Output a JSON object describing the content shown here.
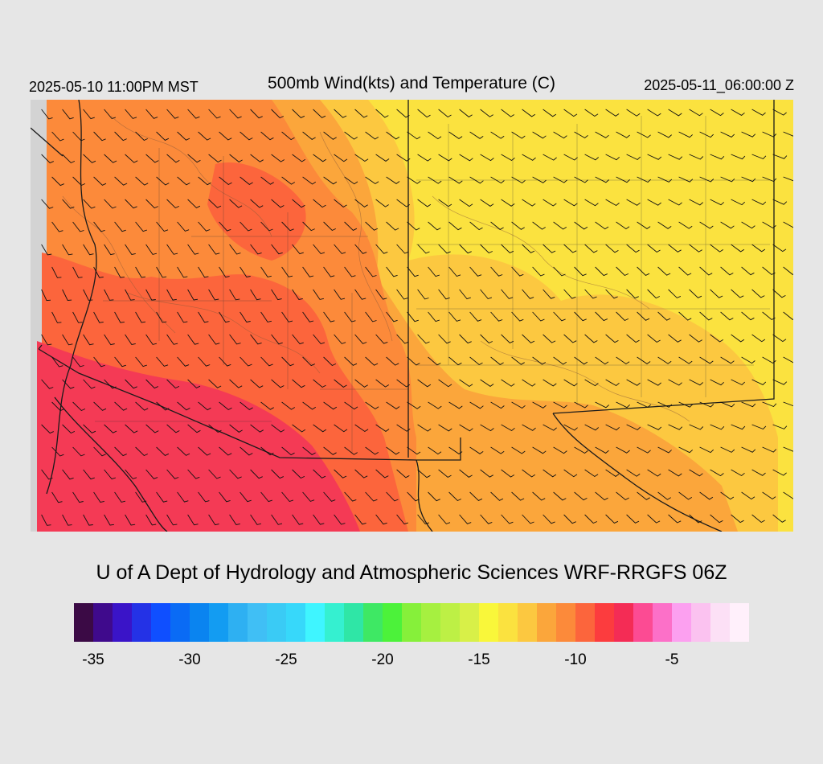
{
  "header": {
    "local_time": "2025-05-10 11:00PM MST",
    "title": "500mb Wind(kts) and Temperature (C)",
    "utc_time": "2025-05-11_06:00:00 Z"
  },
  "credit": "U of A Dept of Hydrology and Atmospheric Sciences WRF-RRGFS 06Z",
  "colorbar": {
    "colors": [
      "#3b0a45",
      "#3f0a8c",
      "#3a14c8",
      "#2432e6",
      "#0f4fff",
      "#0a6bf5",
      "#0a84f0",
      "#139cf2",
      "#2eb0f2",
      "#40bff5",
      "#3acbf5",
      "#37d8fa",
      "#3ff5ff",
      "#35f0d0",
      "#2fe6a6",
      "#3ee864",
      "#4cf23a",
      "#86f03a",
      "#a6f040",
      "#bdf045",
      "#d8f048",
      "#f9f73a",
      "#fbe23f",
      "#fcc840",
      "#fba63b",
      "#fc8a3a",
      "#fc653c",
      "#fc3c3e",
      "#f42c55",
      "#fc4b93",
      "#fc70c8",
      "#fca0f0",
      "#fbc2f0",
      "#fce0f6",
      "#fff0fb"
    ],
    "tick_labels": [
      "-35",
      "-30",
      "-25",
      "-20",
      "-15",
      "-10",
      "-5"
    ],
    "tick_values": [
      -35,
      -30,
      -25,
      -20,
      -15,
      -10,
      -5
    ],
    "range": [
      -36,
      -1
    ]
  },
  "map": {
    "field": "500mb temperature (C)",
    "nodata_color": "#d3d3d3",
    "colors": {
      "coldest_sw": "#f43a55",
      "cold": "#fc653c",
      "mid": "#fc8a3a",
      "warmish": "#fba63b",
      "warm": "#fcc840",
      "warmest": "#fbe23f"
    }
  }
}
